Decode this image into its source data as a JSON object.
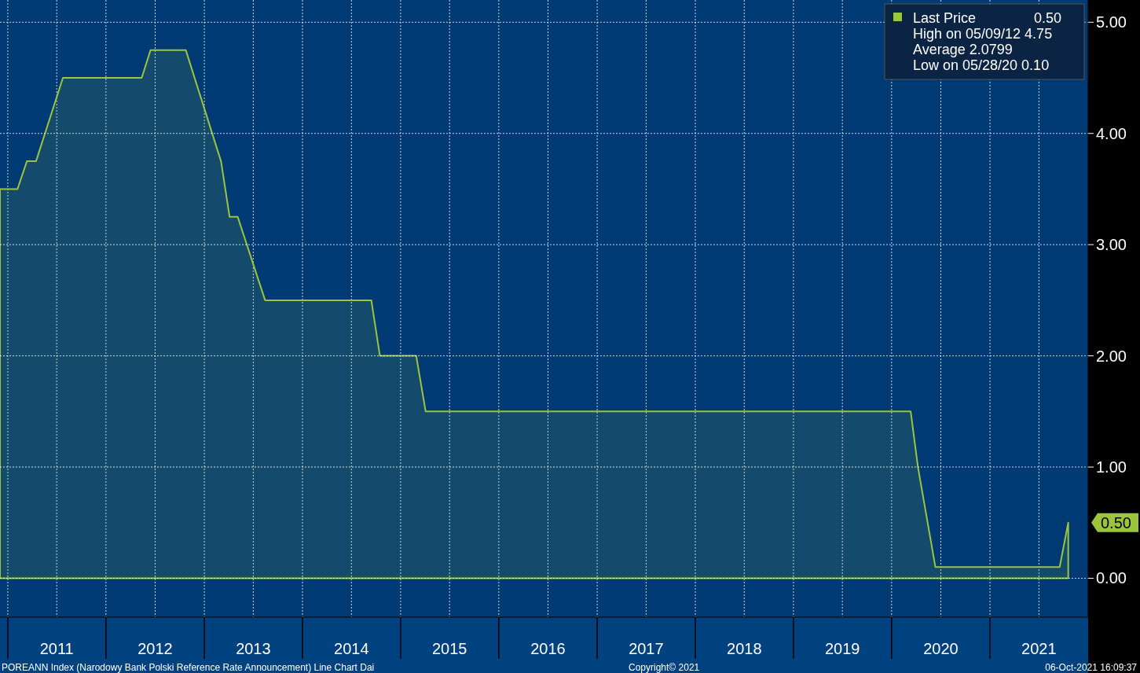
{
  "chart_data": {
    "type": "area",
    "x": [
      "2010-12-03",
      "2011-02-06",
      "2011-03-13",
      "2011-04-16",
      "2011-07-25",
      "2012-05-13",
      "2012-06-15",
      "2012-10-24",
      "2013-03-04",
      "2013-04-05",
      "2013-05-05",
      "2013-08-15",
      "2014-09-14",
      "2014-10-16",
      "2015-02-28",
      "2015-04-04",
      "2020-03-12",
      "2020-04-08",
      "2020-06-12",
      "2021-09-17",
      "2021-10-19"
    ],
    "series": [
      {
        "name": "Last Price",
        "color": "#9bc53d",
        "values": [
          3.5,
          3.5,
          3.75,
          3.75,
          4.5,
          4.5,
          4.75,
          4.75,
          3.75,
          3.25,
          3.25,
          2.5,
          2.5,
          2.0,
          2.0,
          1.5,
          1.5,
          1.0,
          0.1,
          0.1,
          0.5
        ]
      }
    ],
    "xlim": [
      "2010-12-03",
      "2022-01-01"
    ],
    "xticks": [
      {
        "value": "2011-01-01",
        "label": null
      },
      {
        "value": "2011-07-02",
        "label": "2011"
      },
      {
        "value": "2012-01-01",
        "label": null
      },
      {
        "value": "2012-07-02",
        "label": "2012"
      },
      {
        "value": "2013-01-01",
        "label": null
      },
      {
        "value": "2013-07-02",
        "label": "2013"
      },
      {
        "value": "2014-01-01",
        "label": null
      },
      {
        "value": "2014-07-02",
        "label": "2014"
      },
      {
        "value": "2015-01-01",
        "label": null
      },
      {
        "value": "2015-07-02",
        "label": "2015"
      },
      {
        "value": "2016-01-01",
        "label": null
      },
      {
        "value": "2016-07-02",
        "label": "2016"
      },
      {
        "value": "2017-01-01",
        "label": null
      },
      {
        "value": "2017-07-02",
        "label": "2017"
      },
      {
        "value": "2018-01-01",
        "label": null
      },
      {
        "value": "2018-07-02",
        "label": "2018"
      },
      {
        "value": "2019-01-01",
        "label": null
      },
      {
        "value": "2019-07-02",
        "label": "2019"
      },
      {
        "value": "2020-01-01",
        "label": null
      },
      {
        "value": "2020-07-02",
        "label": "2020"
      },
      {
        "value": "2021-01-01",
        "label": null
      },
      {
        "value": "2021-07-02",
        "label": "2021"
      }
    ],
    "ylim": [
      -0.35,
      5.2
    ],
    "yticks": [
      {
        "value": 0,
        "label": "0.00"
      },
      {
        "value": 1,
        "label": "1.00"
      },
      {
        "value": 2,
        "label": "2.00"
      },
      {
        "value": 3,
        "label": "3.00"
      },
      {
        "value": 4,
        "label": "4.00"
      },
      {
        "value": 5,
        "label": "5.00"
      }
    ],
    "grid": true,
    "legend": "top right",
    "annotations": [
      "0.50",
      "High on 05/09/12 4.75",
      "Average 2.0799",
      "Low on 05/28/20 0.10",
      "POREANN Index (Narodowy Bank Polski Reference Rate Announcement) Line Chart  Dai",
      "Copyright© 2021",
      "06-Oct-2021 16:09:37",
      {
        "text": "0.50",
        "x": "2021-10-19",
        "y": 0.5
      }
    ]
  }
}
